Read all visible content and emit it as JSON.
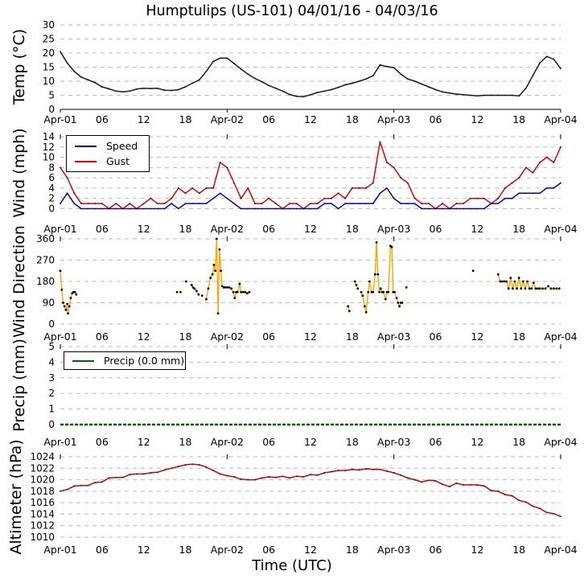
{
  "title": "Humptulips (US-101) 04/01/16 - 04/03/16",
  "xlabel": "Time (UTC)",
  "x_ticks": [
    "Apr-01",
    "06",
    "12",
    "18",
    "Apr-02",
    "06",
    "12",
    "18",
    "Apr-03",
    "06",
    "12",
    "18",
    "Apr-04"
  ],
  "x_hours_span": 72,
  "colors": {
    "temp": "#1a1a1a",
    "speed": "#0000dd",
    "gust": "#e60000",
    "direction": "#ffa500",
    "direction_marker": "#000000",
    "precip": "#006400",
    "altimeter": "#d40000",
    "altimeter_marker": "#000000",
    "grid": "#bababa",
    "axis": "#333333"
  },
  "chart_data": [
    {
      "type": "line",
      "ylabel": "Temp (°C)",
      "yticks": [
        0,
        5,
        10,
        15,
        20,
        25,
        30
      ],
      "ylim": [
        0,
        30
      ],
      "x_unit": "hours since 04/01/16 00:00 UTC (1-hour steps)",
      "series": [
        {
          "name": "Temp",
          "values": [
            20.5,
            16.5,
            13.5,
            11.5,
            10.5,
            9.5,
            8.0,
            7.3,
            6.5,
            6.2,
            6.5,
            7.2,
            7.5,
            7.4,
            7.5,
            6.8,
            6.7,
            7.0,
            8.0,
            9.3,
            10.5,
            13.5,
            17.0,
            18.2,
            18.2,
            16.3,
            14.3,
            12.5,
            11.0,
            9.8,
            8.5,
            7.5,
            6.5,
            5.3,
            4.6,
            4.5,
            5.2,
            6.0,
            6.5,
            7.0,
            7.8,
            8.7,
            9.3,
            10.0,
            10.8,
            12.0,
            15.8,
            15.2,
            14.8,
            12.5,
            10.8,
            10.0,
            9.0,
            8.0,
            7.0,
            6.2,
            5.8,
            5.4,
            5.2,
            5.0,
            4.8,
            5.0,
            5.0,
            5.0,
            5.0,
            5.0,
            4.8,
            7.5,
            12.0,
            16.5,
            18.8,
            17.8,
            14.5
          ]
        }
      ]
    },
    {
      "type": "line",
      "ylabel": "Wind (mph)",
      "yticks": [
        0,
        2,
        4,
        6,
        8,
        10,
        12,
        14
      ],
      "ylim": [
        0,
        14
      ],
      "x_unit": "hours since 04/01/16 00:00 UTC (1-hour steps)",
      "legend": [
        {
          "label": "Speed",
          "color_key": "speed"
        },
        {
          "label": "Gust",
          "color_key": "gust"
        }
      ],
      "series": [
        {
          "name": "Gust",
          "color_key": "gust",
          "values": [
            8,
            6,
            3,
            1,
            1,
            1,
            1,
            0,
            1,
            0,
            1,
            0,
            1,
            2,
            1,
            1,
            2,
            4,
            3,
            4,
            3,
            4,
            4,
            9,
            8,
            5,
            2,
            4,
            1,
            1,
            2,
            1,
            0,
            1,
            1,
            0,
            1,
            1,
            2,
            2,
            3,
            2,
            4,
            4,
            4,
            5,
            13,
            9,
            8,
            6,
            5,
            2,
            1,
            1,
            0,
            1,
            0,
            1,
            1,
            2,
            2,
            2,
            1,
            2,
            4,
            5,
            6,
            8,
            7,
            9,
            10,
            9,
            12
          ]
        },
        {
          "name": "Speed",
          "color_key": "speed",
          "values": [
            1,
            3,
            1,
            0,
            0,
            0,
            0,
            0,
            0,
            0,
            0,
            0,
            0,
            0,
            0,
            0,
            1,
            0,
            1,
            1,
            1,
            1,
            2,
            3,
            2,
            1,
            0,
            0,
            0,
            0,
            0,
            0,
            0,
            0,
            0,
            0,
            0,
            0,
            1,
            1,
            0,
            1,
            1,
            1,
            1,
            1,
            3,
            4,
            2,
            1,
            1,
            1,
            0,
            0,
            0,
            0,
            0,
            0,
            0,
            0,
            0,
            0,
            1,
            1,
            2,
            2,
            3,
            3,
            3,
            3,
            4,
            4,
            5
          ]
        }
      ]
    },
    {
      "type": "scatter",
      "ylabel": "Wind Direction",
      "yticks": [
        0,
        90,
        180,
        270,
        360
      ],
      "ylim": [
        0,
        360
      ],
      "x_unit": "hours since 04/01/16 00:00 UTC",
      "connect_max_gap_hours": 0.42,
      "points": [
        [
          0.0,
          225
        ],
        [
          0.2,
          145
        ],
        [
          0.4,
          90
        ],
        [
          0.6,
          75
        ],
        [
          0.8,
          60
        ],
        [
          1.0,
          85
        ],
        [
          1.1,
          45
        ],
        [
          1.3,
          75
        ],
        [
          1.5,
          110
        ],
        [
          1.7,
          130
        ],
        [
          1.9,
          135
        ],
        [
          2.1,
          135
        ],
        [
          2.3,
          125
        ],
        [
          16.8,
          135
        ],
        [
          17.3,
          135
        ],
        [
          18.1,
          180
        ],
        [
          18.9,
          165
        ],
        [
          19.1,
          155
        ],
        [
          19.3,
          150
        ],
        [
          19.6,
          140
        ],
        [
          19.9,
          125
        ],
        [
          20.4,
          120
        ],
        [
          21.0,
          105
        ],
        [
          21.3,
          150
        ],
        [
          21.6,
          195
        ],
        [
          21.9,
          210
        ],
        [
          22.1,
          250
        ],
        [
          22.3,
          225
        ],
        [
          22.5,
          360
        ],
        [
          22.7,
          45
        ],
        [
          22.9,
          315
        ],
        [
          23.1,
          225
        ],
        [
          23.3,
          160
        ],
        [
          23.5,
          155
        ],
        [
          23.7,
          155
        ],
        [
          24.0,
          155
        ],
        [
          24.3,
          155
        ],
        [
          24.6,
          150
        ],
        [
          24.9,
          135
        ],
        [
          25.1,
          110
        ],
        [
          25.3,
          135
        ],
        [
          25.5,
          135
        ],
        [
          25.8,
          170
        ],
        [
          26.0,
          135
        ],
        [
          26.3,
          135
        ],
        [
          26.6,
          135
        ],
        [
          26.9,
          130
        ],
        [
          27.2,
          135
        ],
        [
          41.4,
          75
        ],
        [
          41.6,
          55
        ],
        [
          42.4,
          180
        ],
        [
          42.6,
          165
        ],
        [
          42.8,
          150
        ],
        [
          43.3,
          135
        ],
        [
          43.5,
          120
        ],
        [
          43.8,
          75
        ],
        [
          44.0,
          50
        ],
        [
          44.3,
          135
        ],
        [
          44.5,
          180
        ],
        [
          44.8,
          135
        ],
        [
          45.0,
          135
        ],
        [
          45.3,
          210
        ],
        [
          45.5,
          345
        ],
        [
          45.7,
          210
        ],
        [
          45.9,
          135
        ],
        [
          46.1,
          150
        ],
        [
          46.3,
          135
        ],
        [
          46.5,
          135
        ],
        [
          46.8,
          105
        ],
        [
          47.0,
          135
        ],
        [
          47.2,
          135
        ],
        [
          47.5,
          330
        ],
        [
          47.7,
          325
        ],
        [
          47.9,
          135
        ],
        [
          48.1,
          135
        ],
        [
          48.4,
          110
        ],
        [
          48.6,
          90
        ],
        [
          48.8,
          75
        ],
        [
          49.0,
          90
        ],
        [
          49.2,
          90
        ],
        [
          49.8,
          155
        ],
        [
          59.4,
          225
        ],
        [
          63.0,
          210
        ],
        [
          63.3,
          180
        ],
        [
          63.6,
          180
        ],
        [
          63.9,
          180
        ],
        [
          64.2,
          180
        ],
        [
          64.5,
          150
        ],
        [
          64.8,
          195
        ],
        [
          65.1,
          150
        ],
        [
          65.4,
          180
        ],
        [
          65.7,
          150
        ],
        [
          66.0,
          195
        ],
        [
          66.3,
          150
        ],
        [
          66.6,
          180
        ],
        [
          66.9,
          150
        ],
        [
          67.2,
          180
        ],
        [
          67.5,
          150
        ],
        [
          67.8,
          150
        ],
        [
          68.1,
          175
        ],
        [
          68.4,
          150
        ],
        [
          68.7,
          150
        ],
        [
          69.0,
          150
        ],
        [
          69.4,
          150
        ],
        [
          69.8,
          150
        ],
        [
          70.2,
          160
        ],
        [
          70.6,
          150
        ],
        [
          71.0,
          150
        ],
        [
          71.4,
          150
        ],
        [
          71.8,
          150
        ]
      ]
    },
    {
      "type": "line",
      "ylabel": "Precip (mm)",
      "yticks": [
        0,
        1,
        2,
        3,
        4,
        5
      ],
      "ylim": [
        0,
        5
      ],
      "x_unit": "hours since 04/01/16 00:00 UTC",
      "legend": [
        {
          "label": "Precip (0.0 mm)",
          "color_key": "precip"
        }
      ],
      "series": [
        {
          "name": "Precip",
          "color_key": "precip",
          "constant_value": 0
        }
      ]
    },
    {
      "type": "line",
      "ylabel": "Altimeter (hPa)",
      "yticks": [
        1010,
        1012,
        1014,
        1016,
        1018,
        1020,
        1022,
        1024
      ],
      "ylim": [
        1010,
        1024
      ],
      "x_unit": "hours since 04/01/16 00:00 UTC (1-hour steps)",
      "series": [
        {
          "name": "Altimeter",
          "color_key": "altimeter",
          "values": [
            1018.0,
            1018.3,
            1018.9,
            1019.0,
            1019.0,
            1019.5,
            1019.6,
            1020.3,
            1020.4,
            1020.4,
            1020.9,
            1021.0,
            1021.0,
            1021.2,
            1021.3,
            1021.7,
            1022.0,
            1022.3,
            1022.6,
            1022.7,
            1022.6,
            1022.2,
            1021.6,
            1021.0,
            1020.7,
            1020.5,
            1020.1,
            1020.0,
            1020.0,
            1020.3,
            1020.5,
            1020.4,
            1020.6,
            1020.3,
            1020.6,
            1020.5,
            1020.9,
            1020.8,
            1021.2,
            1021.4,
            1021.6,
            1021.6,
            1021.8,
            1021.7,
            1021.9,
            1021.8,
            1021.8,
            1021.5,
            1021.2,
            1020.8,
            1020.3,
            1020.0,
            1019.6,
            1019.9,
            1019.8,
            1019.2,
            1018.8,
            1019.4,
            1019.1,
            1019.1,
            1019.1,
            1018.9,
            1018.1,
            1018.0,
            1017.4,
            1017.2,
            1016.4,
            1016.1,
            1015.4,
            1015.0,
            1014.3,
            1014.1,
            1013.6
          ]
        }
      ]
    }
  ]
}
